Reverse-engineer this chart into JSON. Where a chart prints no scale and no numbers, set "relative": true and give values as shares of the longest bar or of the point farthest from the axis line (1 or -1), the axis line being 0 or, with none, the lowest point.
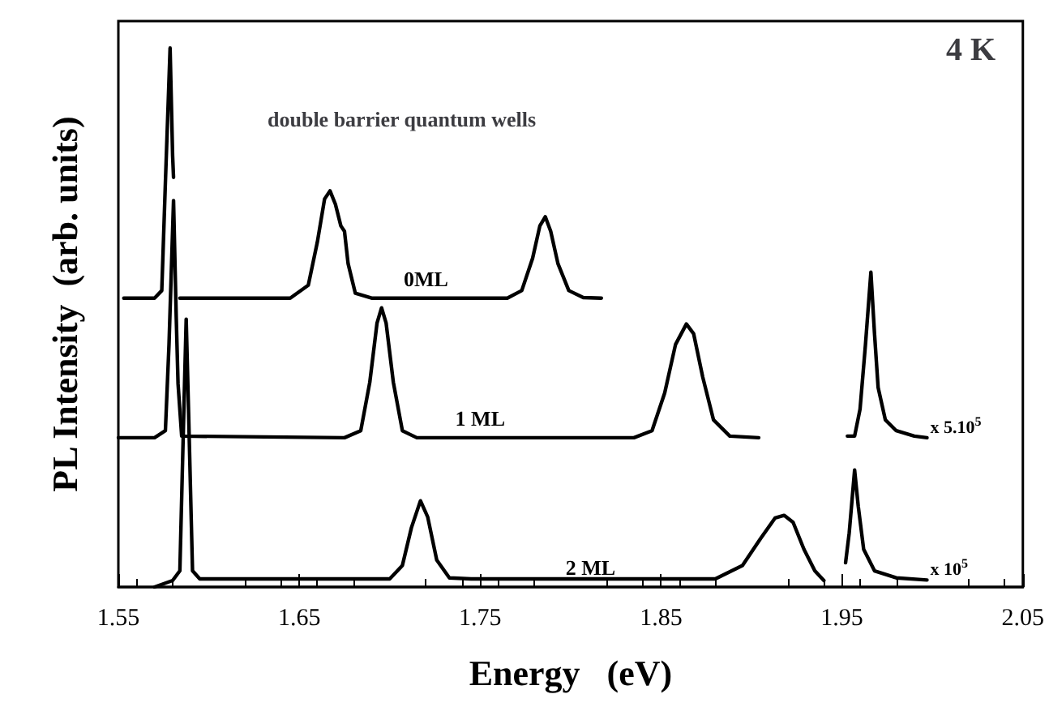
{
  "chart_data": {
    "type": "line",
    "title": "4 K",
    "subtitle": "double barrier quantum wells",
    "xlabel": "Energy   (eV)",
    "ylabel": "PL Intensity  (arb. units)",
    "relative": true,
    "tick_labels": "x",
    "xlim": [
      1.55,
      2.05
    ],
    "xticks": [
      1.55,
      1.65,
      1.75,
      1.85,
      1.95,
      2.05
    ],
    "grid": false,
    "marker": "none",
    "line_style": "solid",
    "series": [
      {
        "name": "0ML",
        "color": "#000000",
        "x": [
          1.553,
          1.57,
          1.574,
          1.576,
          1.5786,
          1.58,
          1.5805,
          1.582,
          1.584,
          1.645,
          1.655,
          1.66,
          1.664,
          1.667,
          1.67,
          1.673,
          1.675,
          1.677,
          1.681,
          1.69,
          1.765,
          1.773,
          1.779,
          1.783,
          1.786,
          1.789,
          1.793,
          1.799,
          1.807,
          1.817
        ],
        "values": [
          0.536,
          0.536,
          0.55,
          0.75,
          1.0,
          0.8,
          0.76,
          null,
          0.536,
          0.536,
          0.56,
          0.64,
          0.72,
          0.735,
          0.71,
          0.67,
          0.66,
          0.6,
          0.545,
          0.536,
          0.536,
          0.55,
          0.61,
          0.67,
          0.687,
          0.66,
          0.6,
          0.55,
          0.537,
          0.536
        ]
      },
      {
        "name": "1 ML",
        "color": "#000000",
        "x": [
          1.55,
          1.57,
          1.576,
          1.578,
          1.5805,
          1.582,
          1.583,
          1.585,
          1.675,
          1.684,
          1.689,
          1.693,
          1.6955,
          1.698,
          1.702,
          1.707,
          1.715,
          1.835,
          1.845,
          1.852,
          1.858,
          1.864,
          1.868,
          1.873,
          1.879,
          1.888,
          1.904,
          1.93,
          1.953,
          1.957,
          1.96,
          1.963,
          1.966,
          1.968,
          1.97,
          1.974,
          1.98,
          1.99,
          1.997
        ],
        "values": [
          0.277,
          0.277,
          0.29,
          0.45,
          0.717,
          0.5,
          0.377,
          0.28,
          0.277,
          0.29,
          0.38,
          0.49,
          0.518,
          0.49,
          0.38,
          0.29,
          0.277,
          0.277,
          0.29,
          0.36,
          0.45,
          0.488,
          0.47,
          0.39,
          0.31,
          0.28,
          0.277,
          null,
          0.28,
          0.28,
          0.33,
          0.45,
          0.584,
          0.47,
          0.37,
          0.31,
          0.29,
          0.28,
          0.277
        ]
      },
      {
        "name": "2 ML",
        "color": "#000000",
        "x": [
          1.57,
          1.58,
          1.584,
          1.586,
          1.5875,
          1.589,
          1.591,
          1.595,
          1.7,
          1.707,
          1.712,
          1.717,
          1.721,
          1.726,
          1.733,
          1.745,
          1.88,
          1.895,
          1.905,
          1.913,
          1.918,
          1.923,
          1.929,
          1.935,
          1.94,
          1.946,
          1.952,
          1.954,
          1.957,
          1.959,
          1.962,
          1.968,
          1.98,
          1.997
        ],
        "values": [
          0.0,
          0.012,
          0.03,
          0.3,
          0.497,
          0.3,
          0.03,
          0.015,
          0.015,
          0.04,
          0.11,
          0.16,
          0.13,
          0.05,
          0.017,
          0.015,
          0.015,
          0.04,
          0.09,
          0.128,
          0.133,
          0.12,
          0.07,
          0.03,
          0.012,
          null,
          0.045,
          0.1,
          0.217,
          0.15,
          0.07,
          0.03,
          0.017,
          0.013
        ]
      }
    ],
    "annotations": [
      "x 5.10$^{5}$",
      "x 10$^{5}$"
    ]
  }
}
